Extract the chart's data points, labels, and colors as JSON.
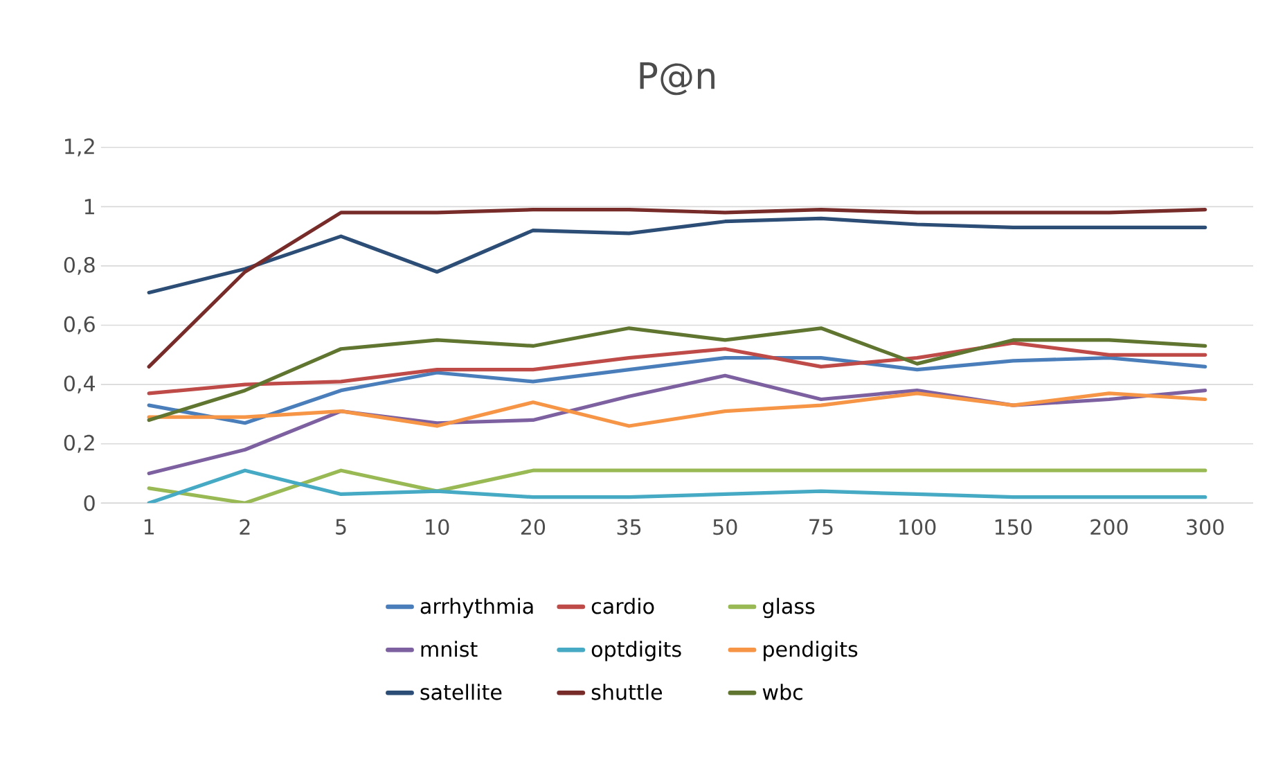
{
  "chart_data": {
    "type": "line",
    "title": "P@n",
    "categories": [
      "1",
      "2",
      "5",
      "10",
      "20",
      "35",
      "50",
      "75",
      "100",
      "150",
      "200",
      "300"
    ],
    "ylim": [
      0,
      1.2
    ],
    "yticks": [
      0,
      {
        "value": 0.2,
        "label": "0,2"
      },
      {
        "value": 0.4,
        "label": "0,4"
      },
      {
        "value": 0.6,
        "label": "0,6"
      },
      {
        "value": 0.8,
        "label": "0,8"
      },
      1,
      {
        "value": 1.2,
        "label": "1,2"
      }
    ],
    "grid": "y",
    "legend": "bottom",
    "marker": "none",
    "line_style": "solid",
    "series": [
      {
        "name": "arrhythmia",
        "color": "#4a7ebb",
        "values": [
          0.33,
          0.27,
          0.38,
          0.44,
          0.41,
          0.45,
          0.49,
          0.49,
          0.45,
          0.48,
          0.49,
          0.46
        ]
      },
      {
        "name": "cardio",
        "color": "#be4b48",
        "values": [
          0.37,
          0.4,
          0.41,
          0.45,
          0.45,
          0.49,
          0.52,
          0.46,
          0.49,
          0.54,
          0.5,
          0.5
        ]
      },
      {
        "name": "glass",
        "color": "#98b954",
        "values": [
          0.05,
          0,
          0.11,
          0.04,
          0.11,
          0.11,
          0.11,
          0.11,
          0.11,
          0.11,
          0.11,
          0.11
        ]
      },
      {
        "name": "mnist",
        "color": "#7d60a0",
        "values": [
          0.1,
          0.18,
          0.31,
          0.27,
          0.28,
          0.36,
          0.43,
          0.35,
          0.38,
          0.33,
          0.35,
          0.38
        ]
      },
      {
        "name": "optdigits",
        "color": "#46aac5",
        "values": [
          0,
          0.11,
          0.03,
          0.04,
          0.02,
          0.02,
          0.03,
          0.04,
          0.03,
          0.02,
          0.02,
          0.02
        ]
      },
      {
        "name": "pendigits",
        "color": "#f69546",
        "values": [
          0.29,
          0.29,
          0.31,
          0.26,
          0.34,
          0.26,
          0.31,
          0.33,
          0.37,
          0.33,
          0.37,
          0.35
        ]
      },
      {
        "name": "satellite",
        "color": "#2c4d75",
        "values": [
          0.71,
          0.79,
          0.9,
          0.78,
          0.92,
          0.91,
          0.95,
          0.96,
          0.94,
          0.93,
          0.93,
          0.93
        ]
      },
      {
        "name": "shuttle",
        "color": "#772c2a",
        "values": [
          0.46,
          0.78,
          0.98,
          0.98,
          0.99,
          0.99,
          0.98,
          0.99,
          0.98,
          0.98,
          0.98,
          0.99
        ]
      },
      {
        "name": "wbc",
        "color": "#5f7530",
        "values": [
          0.28,
          0.38,
          0.52,
          0.55,
          0.53,
          0.59,
          0.55,
          0.59,
          0.47,
          0.55,
          0.55,
          0.53
        ]
      }
    ]
  }
}
